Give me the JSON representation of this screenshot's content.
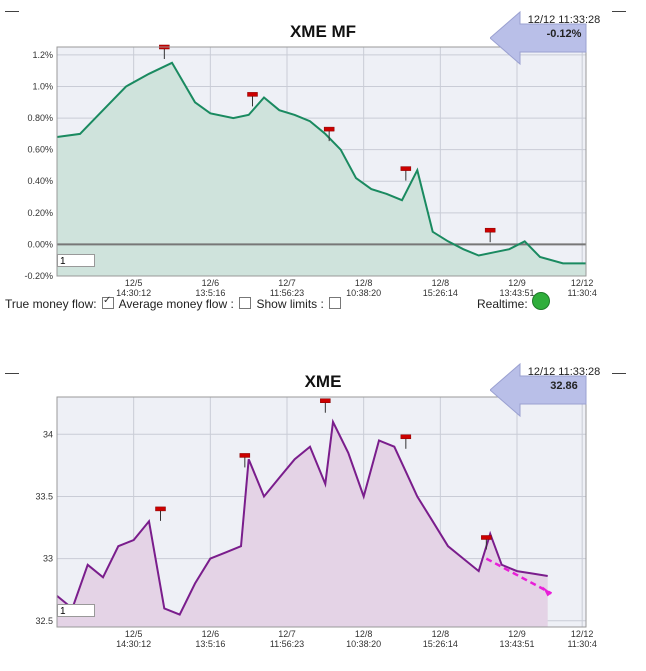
{
  "mf_panel": {
    "title": "XME MF",
    "callout_time": "12/12 11:33:28",
    "callout_value": "-0.12%",
    "input_value": "1",
    "controls": {
      "true_label": "True money flow:",
      "avg_label": "Average money flow :",
      "limits_label": "Show limits :",
      "true_checked": true,
      "avg_checked": false,
      "limits_checked": false
    },
    "realtime_label": "Realtime:",
    "realtime_color": "#2fae3b",
    "dash_left": "—",
    "dash_right": "—"
  },
  "price_panel": {
    "title": "XME",
    "callout_time": "12/12 11:33:28",
    "callout_value": "32.86",
    "input_value": "1",
    "dash_left": "—",
    "dash_right": "—"
  },
  "x_ticks": [
    {
      "date": "12/5",
      "time": "14:30:12"
    },
    {
      "date": "12/6",
      "time": "13:5:16"
    },
    {
      "date": "12/7",
      "time": "11:56:23"
    },
    {
      "date": "12/8",
      "time": "10:38:20"
    },
    {
      "date": "12/8",
      "time": "15:26:14"
    },
    {
      "date": "12/9",
      "time": "13:43:51"
    },
    {
      "date": "12/12",
      "time": "11:30:4"
    }
  ],
  "colors": {
    "mf_line": "#1a8a60",
    "mf_fill": "#cfe3dc",
    "price_line": "#7a1d8c",
    "price_fill": "#e4d3e6",
    "trend_arrow": "#e81fd8",
    "callout": "#b9bfe8",
    "marker": "#cc0000"
  },
  "chart_data": [
    {
      "type": "area",
      "title": "XME MF",
      "y_unit": "%",
      "ylim": [
        -0.2,
        1.25
      ],
      "y_ticks": [
        "-0.20%",
        "0.00%",
        "0.20%",
        "0.40%",
        "0.60%",
        "0.80%",
        "1.0%",
        "1.2%"
      ],
      "grid": true,
      "x": [
        0,
        0.3,
        0.6,
        0.9,
        1.2,
        1.5,
        1.8,
        2.0,
        2.3,
        2.5,
        2.7,
        2.9,
        3.1,
        3.3,
        3.5,
        3.7,
        3.9,
        4.1,
        4.3,
        4.5,
        4.7,
        4.9,
        5.1,
        5.3,
        5.5,
        5.7,
        5.9,
        6.1,
        6.3,
        6.6,
        6.9
      ],
      "values": [
        0.68,
        0.7,
        0.85,
        1.0,
        1.08,
        1.15,
        0.9,
        0.83,
        0.8,
        0.82,
        0.93,
        0.85,
        0.82,
        0.78,
        0.7,
        0.6,
        0.42,
        0.35,
        0.32,
        0.28,
        0.47,
        0.08,
        0.02,
        -0.03,
        -0.07,
        -0.05,
        -0.03,
        0.02,
        -0.08,
        -0.12,
        -0.12
      ],
      "markers": [
        {
          "x": 1.4,
          "y": 1.25
        },
        {
          "x": 2.55,
          "y": 0.95
        },
        {
          "x": 3.55,
          "y": 0.73
        },
        {
          "x": 4.55,
          "y": 0.48
        },
        {
          "x": 5.65,
          "y": 0.09
        }
      ]
    },
    {
      "type": "area",
      "title": "XME",
      "ylim": [
        32.45,
        34.3
      ],
      "y_ticks": [
        "32.5",
        "33",
        "33.5",
        "34"
      ],
      "grid": true,
      "x": [
        0,
        0.2,
        0.4,
        0.6,
        0.8,
        1.0,
        1.2,
        1.4,
        1.6,
        1.8,
        2.0,
        2.2,
        2.4,
        2.5,
        2.7,
        2.9,
        3.1,
        3.3,
        3.5,
        3.6,
        3.8,
        4.0,
        4.2,
        4.4,
        4.55,
        4.7,
        4.9,
        5.1,
        5.3,
        5.5,
        5.65,
        5.8,
        6.0,
        6.2,
        6.4
      ],
      "values": [
        32.7,
        32.6,
        32.95,
        32.85,
        33.1,
        33.15,
        33.3,
        32.6,
        32.55,
        32.8,
        33.0,
        33.05,
        33.1,
        33.8,
        33.5,
        33.65,
        33.8,
        33.9,
        33.6,
        34.1,
        33.85,
        33.5,
        33.95,
        33.9,
        33.7,
        33.5,
        33.3,
        33.1,
        33.0,
        32.9,
        33.2,
        32.95,
        32.9,
        32.88,
        32.86
      ],
      "markers": [
        {
          "x": 1.35,
          "y": 33.4
        },
        {
          "x": 2.45,
          "y": 33.83
        },
        {
          "x": 3.5,
          "y": 34.27
        },
        {
          "x": 4.55,
          "y": 33.98
        },
        {
          "x": 5.6,
          "y": 33.17
        }
      ],
      "trend": {
        "x0": 5.6,
        "y0": 33.0,
        "x1": 6.45,
        "y1": 32.72
      }
    }
  ]
}
